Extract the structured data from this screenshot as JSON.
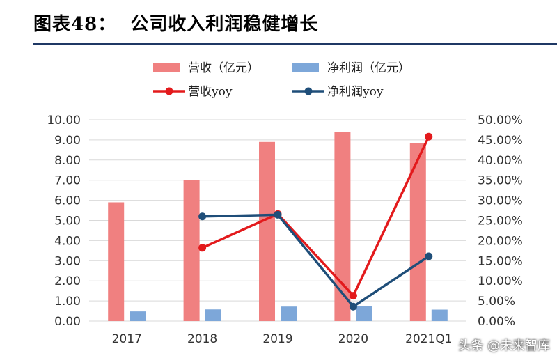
{
  "title": {
    "prefix": "图表",
    "number": "48：",
    "text": "公司收入利润稳健增长"
  },
  "watermark": "头条 @未来智库",
  "chart_data": {
    "type": "bar",
    "categories": [
      "2017",
      "2018",
      "2019",
      "2020",
      "2021Q1"
    ],
    "series": [
      {
        "name": "营收（亿元）",
        "type": "bar",
        "axis": "left",
        "color": "#f08080",
        "values": [
          5.9,
          7.0,
          8.9,
          9.4,
          8.85
        ]
      },
      {
        "name": "净利润（亿元）",
        "type": "bar",
        "axis": "left",
        "color": "#7da7d9",
        "values": [
          0.48,
          0.58,
          0.72,
          0.76,
          0.57
        ]
      },
      {
        "name": "营收yoy",
        "type": "line",
        "axis": "right",
        "color": "#e31a1c",
        "values": [
          null,
          18.2,
          26.6,
          6.3,
          45.8
        ]
      },
      {
        "name": "净利润yoy",
        "type": "line",
        "axis": "right",
        "color": "#1f4e79",
        "values": [
          null,
          26.0,
          26.4,
          3.6,
          16.1
        ]
      }
    ],
    "left_axis": {
      "min": 0,
      "max": 10,
      "step": 1,
      "ticks": [
        "0.00",
        "1.00",
        "2.00",
        "3.00",
        "4.00",
        "5.00",
        "6.00",
        "7.00",
        "8.00",
        "9.00",
        "10.00"
      ]
    },
    "right_axis": {
      "min": 0,
      "max": 50,
      "step": 5,
      "ticks": [
        "0.00%",
        "5.00%",
        "10.00%",
        "15.00%",
        "20.00%",
        "25.00%",
        "30.00%",
        "35.00%",
        "40.00%",
        "45.00%",
        "50.00%"
      ]
    },
    "grid": true,
    "legend_position": "top"
  }
}
